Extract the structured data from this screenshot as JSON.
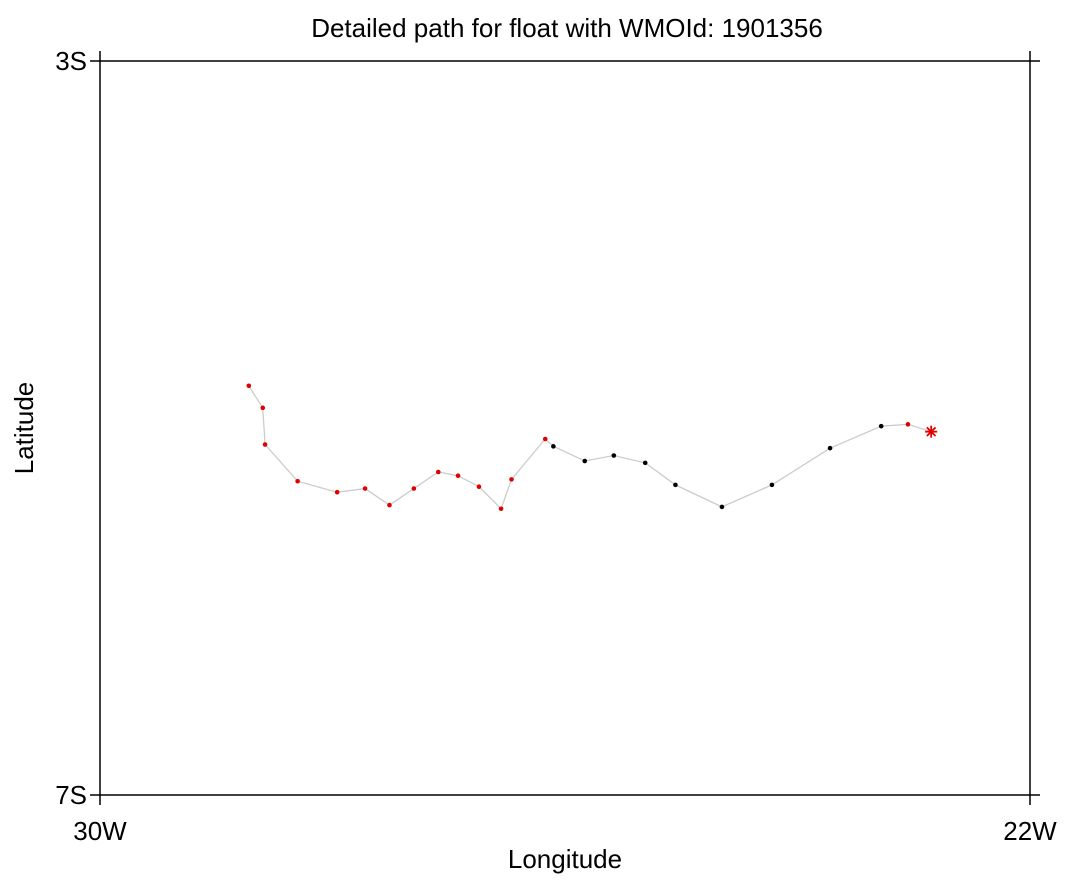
{
  "chart_data": {
    "type": "scatter",
    "title": "Detailed path for float with WMOId: 1901356",
    "xlabel": "Longitude",
    "ylabel": "Latitude",
    "xlim": [
      -30,
      -22
    ],
    "ylim": [
      -7,
      -3
    ],
    "x_ticks": [
      {
        "value": -30,
        "label": "30W"
      },
      {
        "value": -22,
        "label": "22W"
      }
    ],
    "y_ticks": [
      {
        "value": -3,
        "label": "3S"
      },
      {
        "value": -7,
        "label": "7S"
      }
    ],
    "grid": false,
    "legend": "none",
    "colors": {
      "path_line": "#cccccc",
      "red_marker": "#e00000",
      "black_marker": "#000000",
      "axis": "#000000"
    },
    "path": [
      {
        "lon": -28.72,
        "lat": -4.77,
        "color": "red"
      },
      {
        "lon": -28.6,
        "lat": -4.89,
        "color": "red"
      },
      {
        "lon": -28.58,
        "lat": -5.09,
        "color": "red"
      },
      {
        "lon": -28.3,
        "lat": -5.29,
        "color": "red"
      },
      {
        "lon": -27.96,
        "lat": -5.35,
        "color": "red"
      },
      {
        "lon": -27.72,
        "lat": -5.33,
        "color": "red"
      },
      {
        "lon": -27.51,
        "lat": -5.42,
        "color": "red"
      },
      {
        "lon": -27.3,
        "lat": -5.33,
        "color": "red"
      },
      {
        "lon": -27.09,
        "lat": -5.24,
        "color": "red"
      },
      {
        "lon": -26.92,
        "lat": -5.26,
        "color": "red"
      },
      {
        "lon": -26.74,
        "lat": -5.32,
        "color": "red"
      },
      {
        "lon": -26.55,
        "lat": -5.44,
        "color": "red"
      },
      {
        "lon": -26.46,
        "lat": -5.28,
        "color": "red"
      },
      {
        "lon": -26.17,
        "lat": -5.06,
        "color": "red"
      },
      {
        "lon": -26.1,
        "lat": -5.1,
        "color": "black"
      },
      {
        "lon": -25.83,
        "lat": -5.18,
        "color": "black"
      },
      {
        "lon": -25.58,
        "lat": -5.15,
        "color": "black"
      },
      {
        "lon": -25.31,
        "lat": -5.19,
        "color": "black"
      },
      {
        "lon": -25.05,
        "lat": -5.31,
        "color": "black"
      },
      {
        "lon": -24.65,
        "lat": -5.43,
        "color": "black"
      },
      {
        "lon": -24.22,
        "lat": -5.31,
        "color": "black"
      },
      {
        "lon": -23.72,
        "lat": -5.11,
        "color": "black"
      },
      {
        "lon": -23.28,
        "lat": -4.99,
        "color": "black"
      },
      {
        "lon": -23.05,
        "lat": -4.98,
        "color": "red"
      },
      {
        "lon": -22.85,
        "lat": -5.02,
        "color": "red",
        "marker": "asterisk"
      }
    ]
  }
}
